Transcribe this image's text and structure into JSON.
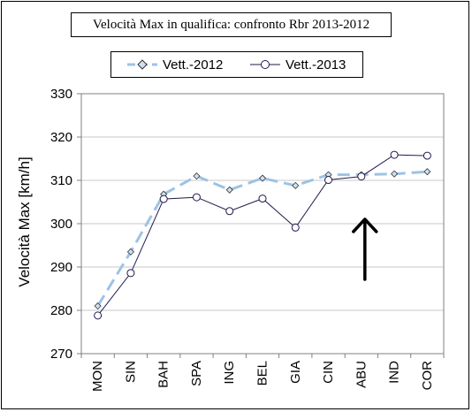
{
  "chart_data": {
    "type": "line",
    "title": "Velocità Max in qualifica: confronto Rbr 2013-2012",
    "xlabel": "",
    "ylabel": "Velocità Max  [km/h]",
    "categories": [
      "MON",
      "SIN",
      "BAH",
      "SPA",
      "ING",
      "BEL",
      "GIA",
      "CIN",
      "ABU",
      "IND",
      "COR"
    ],
    "ylim": [
      270,
      330
    ],
    "yticks": [
      "270",
      "280",
      "290",
      "300",
      "310",
      "320",
      "330"
    ],
    "grid": "horizontal",
    "legend_position": "top",
    "series": [
      {
        "name": "Vett.-2012",
        "values": [
          281.0,
          293.5,
          306.8,
          311.0,
          307.8,
          310.5,
          308.8,
          311.3,
          311.3,
          311.5,
          312.0
        ],
        "color": "#9cc3e4",
        "line_style": "dashed",
        "marker": "diamond"
      },
      {
        "name": "Vett.-2013",
        "values": [
          278.8,
          288.6,
          305.7,
          306.1,
          302.9,
          305.8,
          299.1,
          310.1,
          310.9,
          315.9,
          315.7
        ],
        "color": "#1f1a4d",
        "line_style": "solid",
        "marker": "circle"
      }
    ],
    "annotations": [
      {
        "type": "arrow",
        "direction": "up",
        "category": "ABU",
        "color": "#000000"
      }
    ]
  }
}
